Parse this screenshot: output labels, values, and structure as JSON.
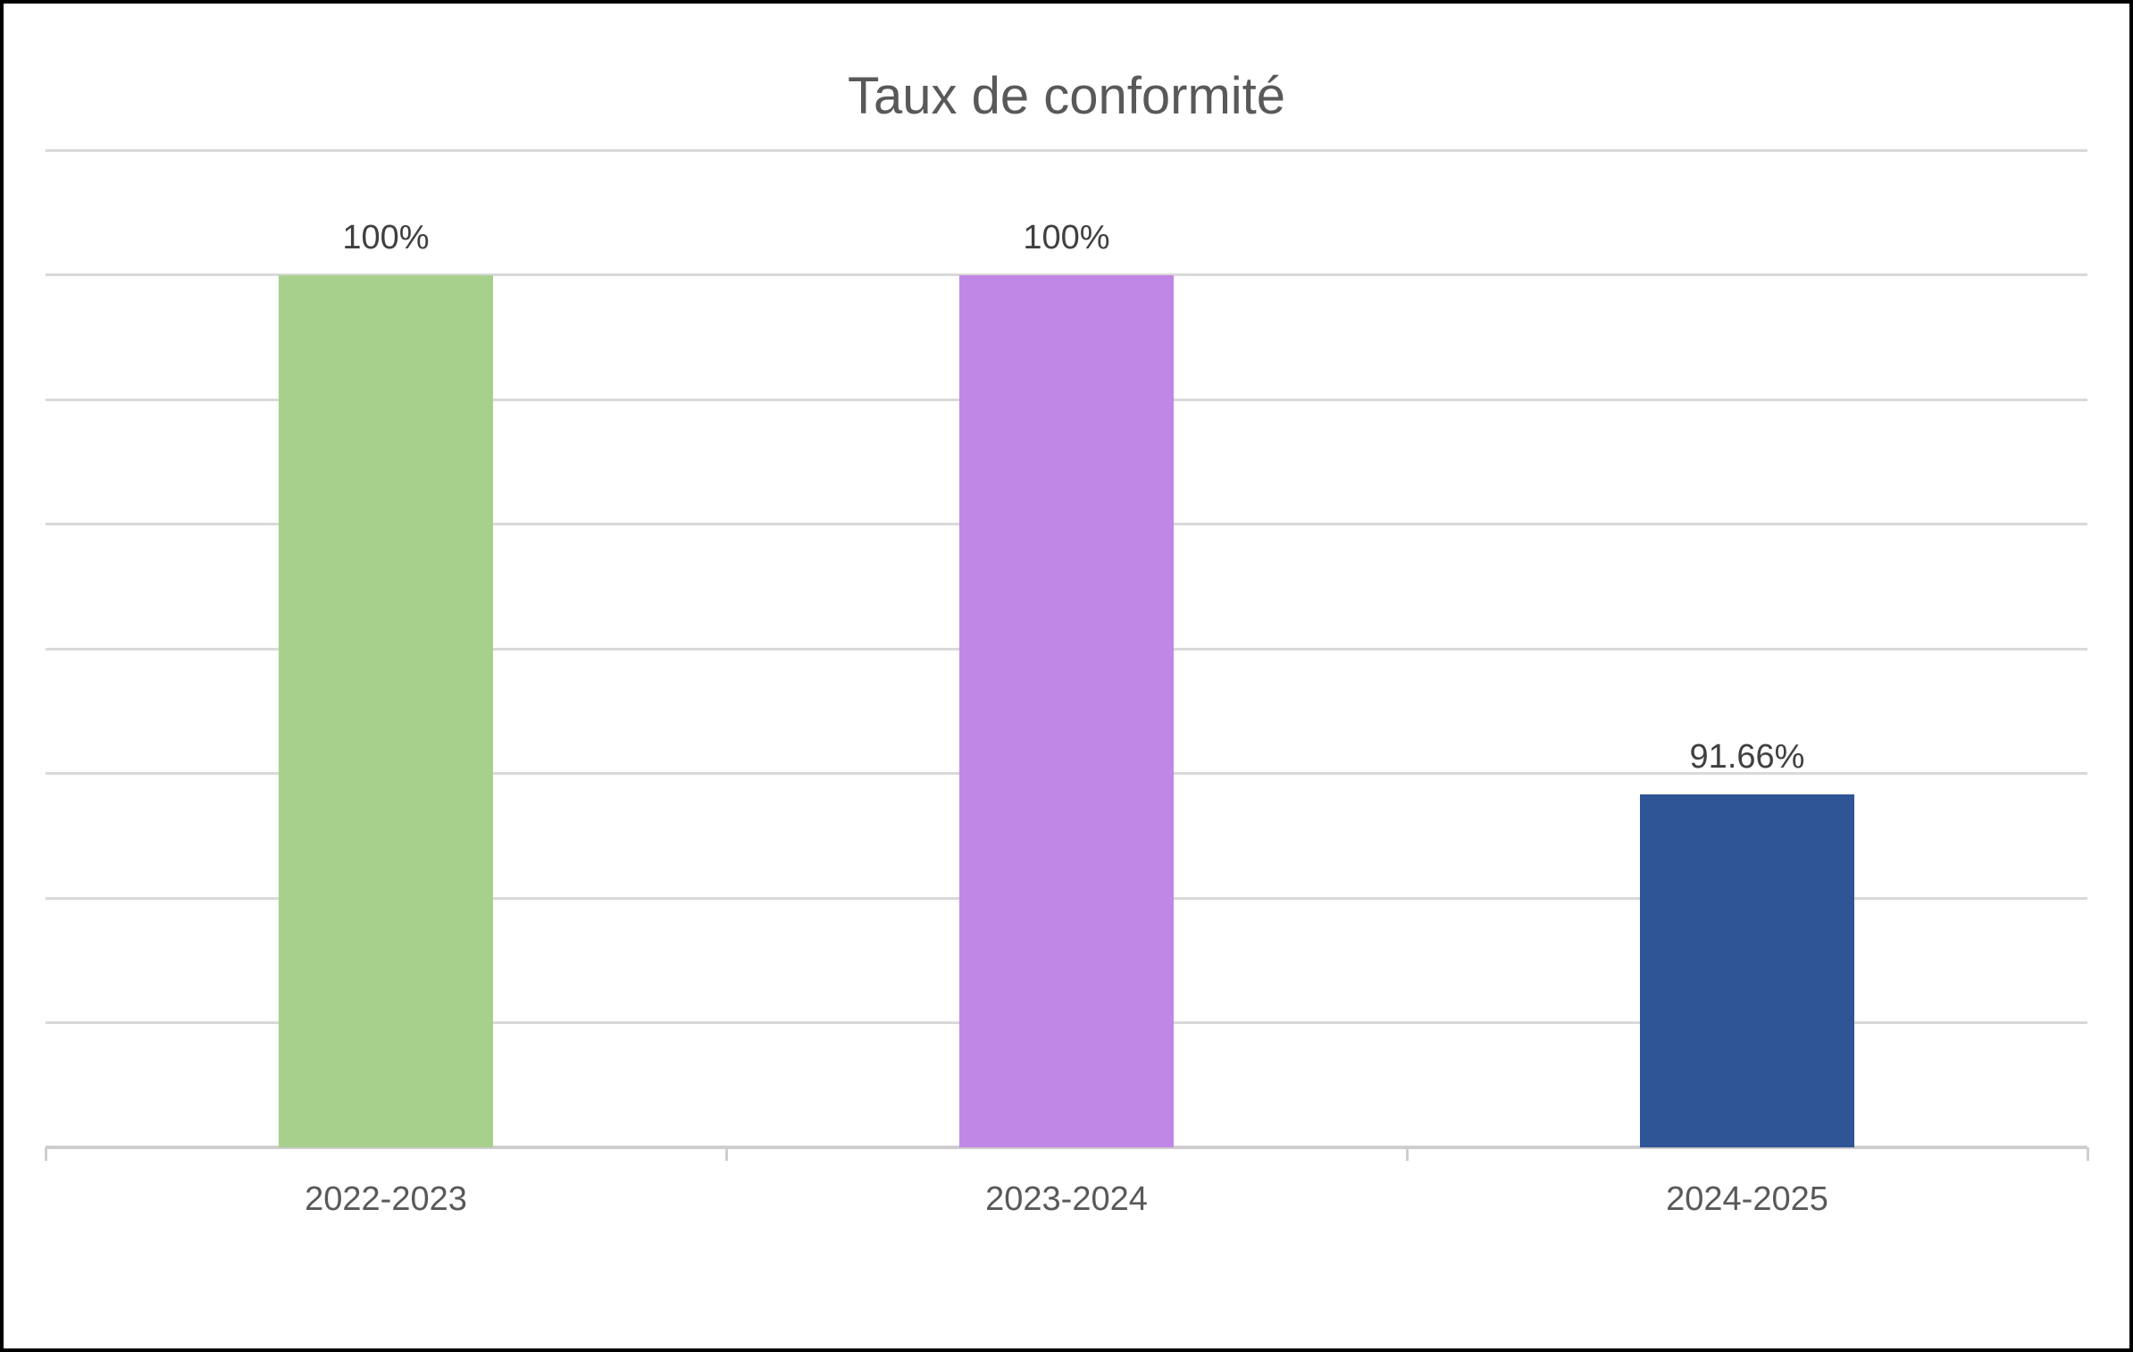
{
  "chart_data": {
    "type": "bar",
    "title": "Taux de conformité",
    "categories": [
      "2022-2023",
      "2023-2024",
      "2024-2025"
    ],
    "values": [
      100,
      100,
      91.66
    ],
    "data_labels": [
      "100%",
      "100%",
      "91.66%"
    ],
    "bar_colors": [
      "#a7d08d",
      "#c187e6",
      "#2f5596"
    ],
    "xlabel": "",
    "ylabel": "",
    "ylim": [
      86,
      102
    ],
    "gridline_step": 2,
    "grid": true,
    "legend": "none",
    "y_axis_labels_visible": false,
    "data_label_position": "outside-end"
  },
  "style": {
    "background": "#ffffff",
    "frame_border_color": "#000000",
    "title_color": "#595959",
    "data_label_color": "#404040",
    "axis_label_color": "#595959",
    "gridline_color": "#d9d9d9",
    "axis_line_color": "#cfcdcd"
  }
}
